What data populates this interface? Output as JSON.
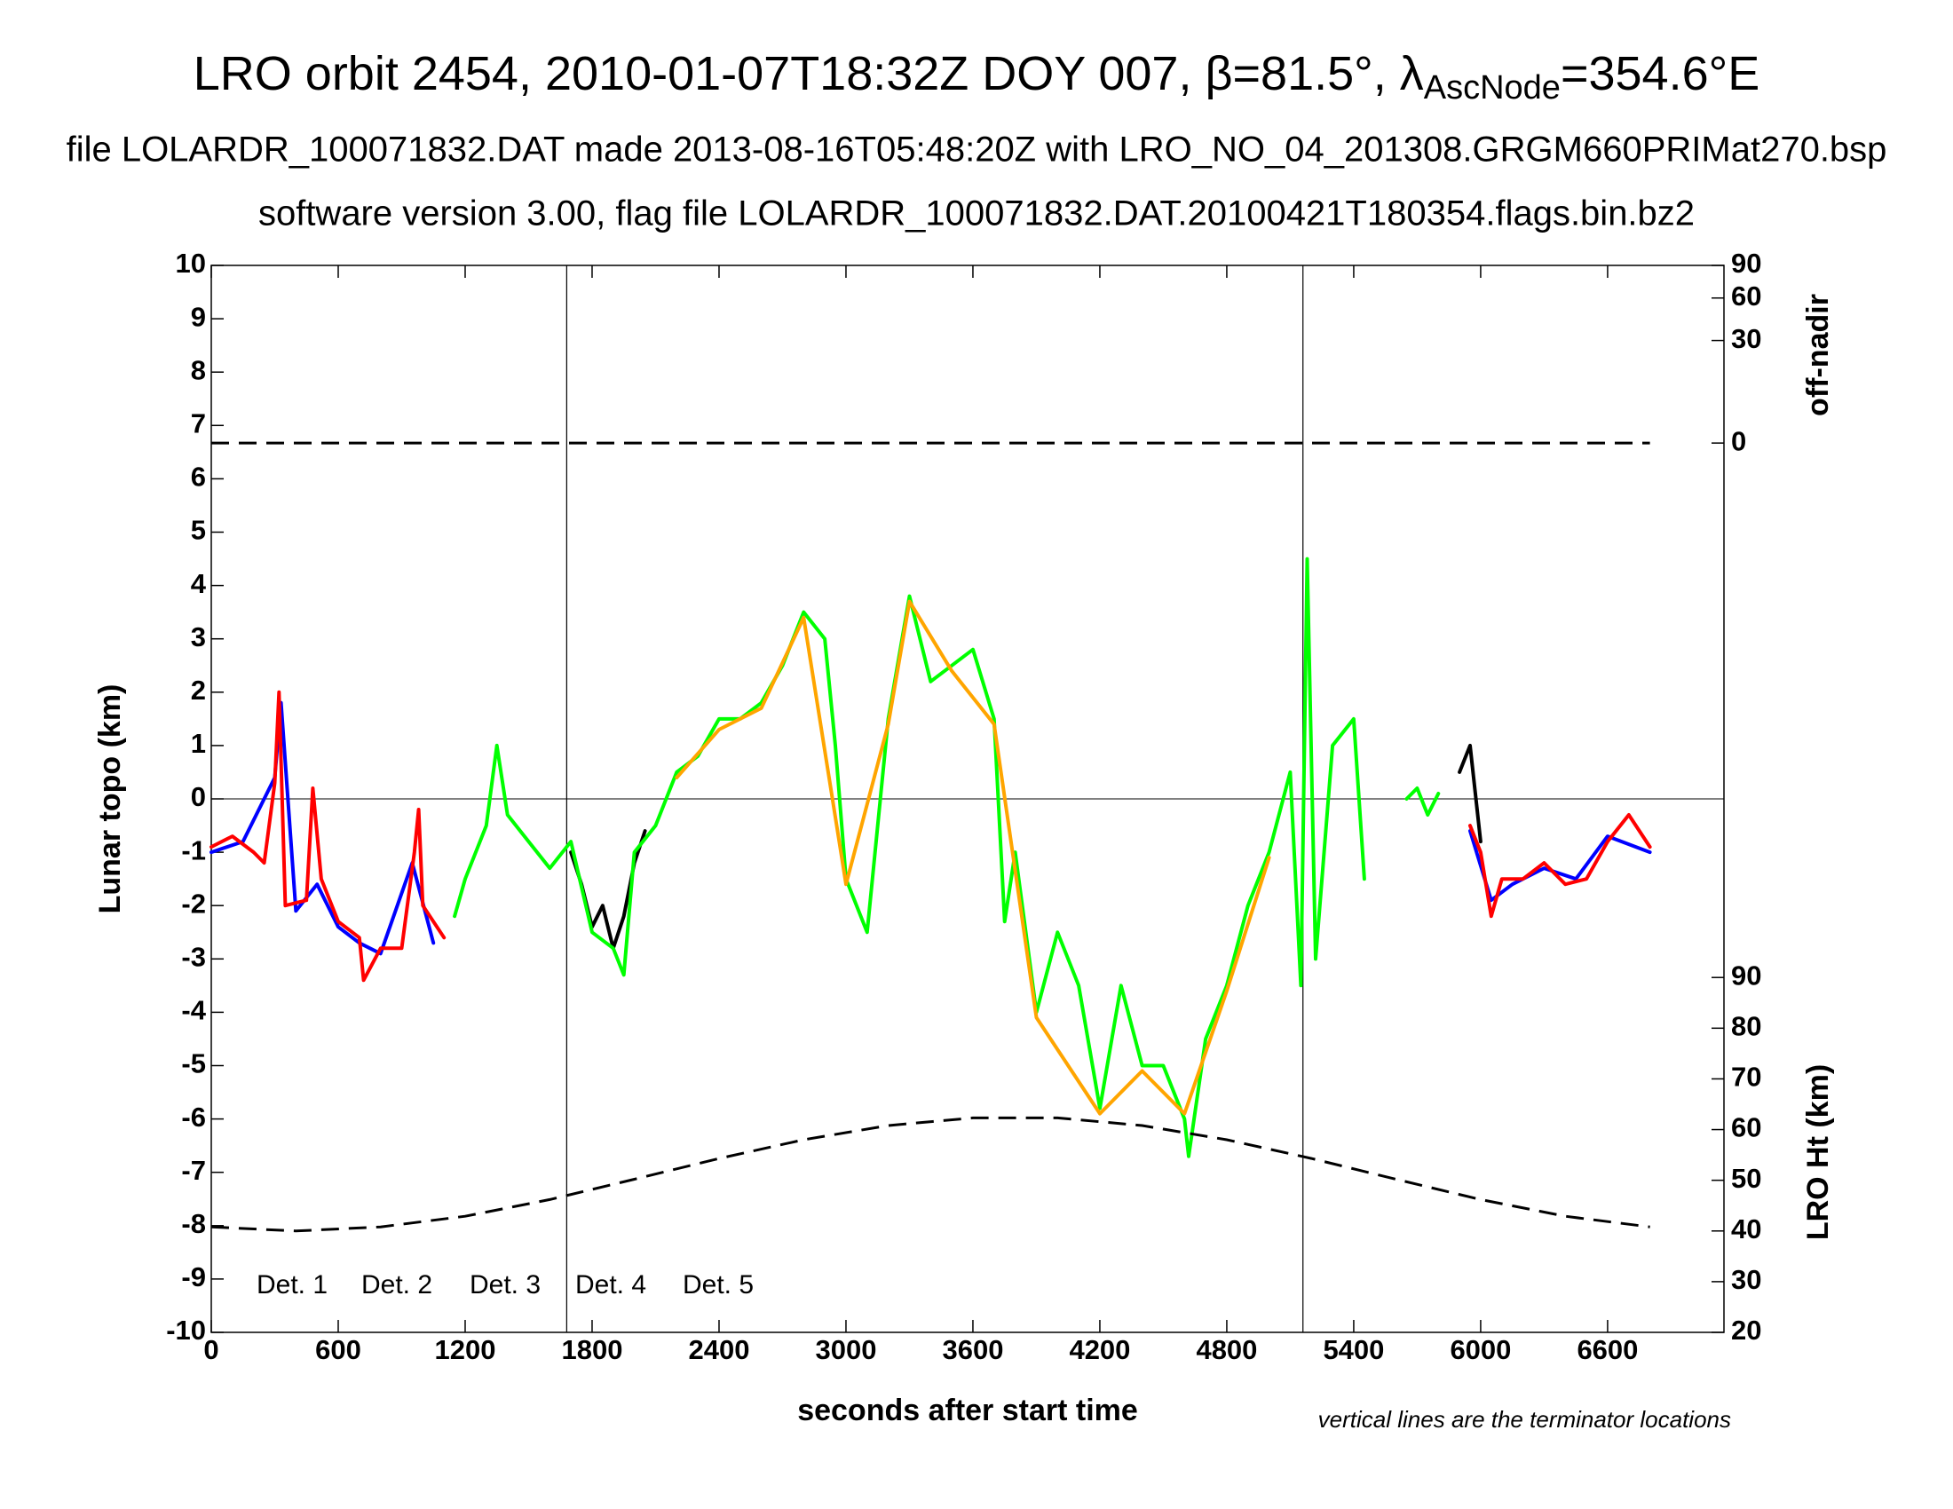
{
  "chart_data": {
    "type": "line",
    "title": [
      "LRO orbit 2454, 2010-01-07T18:32Z DOY 007, β=81.5°, λ",
      "AscNode",
      "=354.6°E"
    ],
    "subtitle": [
      "file LOLARDR_100071832.DAT made 2013-08-16T05:48:20Z with LRO_NO_04_201308.GRGM660PRIMat270.bsp",
      "software version 3.00, flag file LOLARDR_100071832.DAT.20100421T180354.flags.bin.bz2"
    ],
    "x_label": "seconds after start time",
    "y_label": "Lunar topo (km)",
    "y2_label": "LRO Ht (km)",
    "y3_label": "off-nadir",
    "annotation": "vertical lines are the terminator locations",
    "xlim": [
      0,
      7150
    ],
    "xticks": [
      0,
      600,
      1200,
      1800,
      2400,
      3000,
      3600,
      4200,
      4800,
      5400,
      6000,
      6600
    ],
    "ylim": [
      -10,
      10
    ],
    "yticks": [
      -10,
      -9,
      -8,
      -7,
      -6,
      -5,
      -4,
      -3,
      -2,
      -1,
      0,
      1,
      2,
      3,
      4,
      5,
      6,
      7,
      8,
      9,
      10
    ],
    "y2lim": [
      20,
      90
    ],
    "y2ticks": [
      20,
      30,
      40,
      50,
      60,
      70,
      80,
      90
    ],
    "y3lim": [
      0,
      90
    ],
    "y3ticks": [
      0,
      30,
      60,
      90
    ],
    "y3scale": "sqrt",
    "terminators": [
      1680,
      5160
    ],
    "series": [
      {
        "name": "Det. 1",
        "color": "#000000",
        "x": [
          1700,
          1750,
          1800,
          1850,
          1900,
          1950,
          2000,
          2050,
          4000,
          5900,
          5950,
          6000
        ],
        "values": [
          -1.0,
          -1.6,
          -2.4,
          -2.0,
          -2.8,
          -2.2,
          -1.2,
          -0.6,
          null,
          0.5,
          1.0,
          -0.8
        ]
      },
      {
        "name": "Det. 2",
        "color": "#0000ff",
        "x": [
          0,
          150,
          300,
          330,
          400,
          500,
          600,
          700,
          800,
          950,
          1050,
          3000,
          5950,
          6050,
          6150,
          6300,
          6450,
          6600,
          6800
        ],
        "values": [
          -1.0,
          -0.8,
          0.4,
          1.8,
          -2.1,
          -1.6,
          -2.4,
          -2.7,
          -2.9,
          -1.2,
          -2.7,
          null,
          -0.6,
          -1.9,
          -1.6,
          -1.3,
          -1.5,
          -0.7,
          -1.0
        ]
      },
      {
        "name": "Det. 3",
        "color": "#00ff00",
        "x": [
          1150,
          1200,
          1300,
          1350,
          1400,
          1500,
          1600,
          1700,
          1800,
          1900,
          1950,
          2000,
          2100,
          2200,
          2300,
          2400,
          2500,
          2600,
          2700,
          2800,
          2900,
          2950,
          3000,
          3100,
          3200,
          3300,
          3400,
          3500,
          3600,
          3700,
          3750,
          3800,
          3900,
          4000,
          4100,
          4200,
          4300,
          4400,
          4500,
          4600,
          4620,
          4700,
          4800,
          4900,
          5000,
          5100,
          5150,
          5180,
          5220,
          5300,
          5400,
          5450,
          5550,
          5650,
          5700,
          5750,
          5800
        ],
        "values": [
          -2.2,
          -1.5,
          -0.5,
          1.0,
          -0.3,
          -0.8,
          -1.3,
          -0.8,
          -2.5,
          -2.8,
          -3.3,
          -1.0,
          -0.5,
          0.5,
          0.8,
          1.5,
          1.5,
          1.8,
          2.5,
          3.5,
          3.0,
          1.0,
          -1.5,
          -2.5,
          1.5,
          3.8,
          2.2,
          2.5,
          2.8,
          1.5,
          -2.3,
          -1.0,
          -4.0,
          -2.5,
          -3.5,
          -5.8,
          -3.5,
          -5.0,
          -5.0,
          -6.0,
          -6.7,
          -4.5,
          -3.5,
          -2.0,
          -1.0,
          0.5,
          -3.5,
          4.5,
          -3.0,
          1.0,
          1.5,
          -1.5,
          null,
          0.0,
          0.2,
          -0.3,
          0.1
        ]
      },
      {
        "name": "Det. 4",
        "color": "#ffa500",
        "x": [
          2200,
          2400,
          2600,
          2800,
          3000,
          3200,
          3300,
          3500,
          3700,
          3900,
          4200,
          4400,
          4600,
          4800,
          5000
        ],
        "values": [
          0.4,
          1.3,
          1.7,
          3.4,
          -1.6,
          1.4,
          3.7,
          2.4,
          1.4,
          -4.1,
          -5.9,
          -5.1,
          -5.9,
          -3.6,
          -1.1
        ]
      },
      {
        "name": "Det. 5",
        "color": "#ff0000",
        "x": [
          0,
          100,
          200,
          250,
          300,
          320,
          350,
          450,
          480,
          520,
          600,
          700,
          720,
          800,
          900,
          960,
          980,
          1000,
          1100,
          3000,
          5950,
          6000,
          6050,
          6100,
          6200,
          6300,
          6400,
          6500,
          6600,
          6700,
          6800
        ],
        "values": [
          -0.9,
          -0.7,
          -1.0,
          -1.2,
          0.3,
          2.0,
          -2.0,
          -1.9,
          0.2,
          -1.5,
          -2.3,
          -2.6,
          -3.4,
          -2.8,
          -2.8,
          -1.0,
          -0.2,
          -2.0,
          -2.6,
          null,
          -0.5,
          -1.0,
          -2.2,
          -1.5,
          -1.5,
          -1.2,
          -1.6,
          -1.5,
          -0.8,
          -0.3,
          -0.9
        ]
      }
    ],
    "lro_height": {
      "axis": "y2",
      "color": "#000000",
      "x": [
        0,
        400,
        800,
        1200,
        1600,
        2000,
        2400,
        2800,
        3200,
        3600,
        4000,
        4400,
        4800,
        5200,
        5600,
        6000,
        6400,
        6800
      ],
      "values": [
        40.8,
        40.0,
        40.8,
        42.9,
        46.2,
        50.2,
        54.3,
        58.0,
        60.8,
        62.3,
        62.3,
        60.8,
        58.0,
        54.3,
        50.2,
        46.2,
        42.9,
        40.8
      ]
    },
    "off_nadir": {
      "axis": "y3",
      "color": "#000000",
      "x": [
        0,
        6800
      ],
      "values": [
        0,
        0
      ]
    }
  }
}
